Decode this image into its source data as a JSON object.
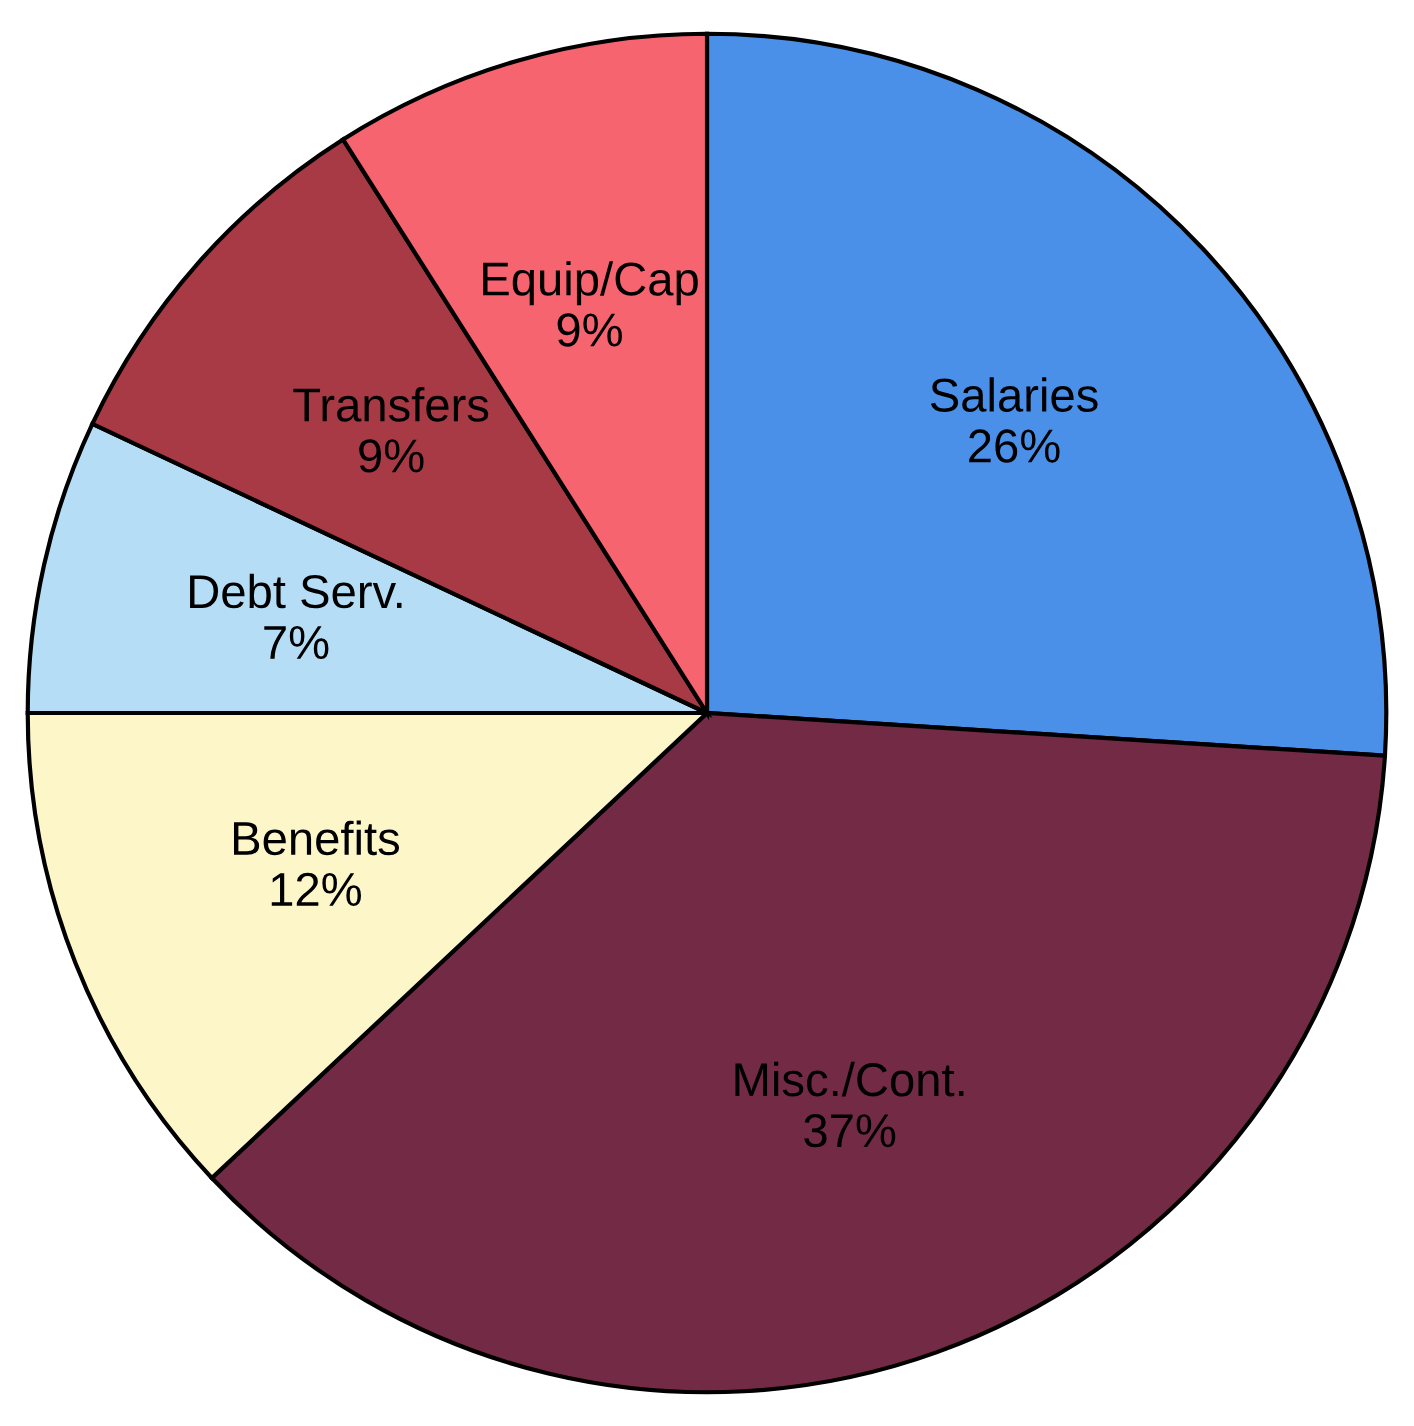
{
  "chart_data": {
    "type": "pie",
    "categories": [
      "Salaries",
      "Misc./Cont.",
      "Benefits",
      "Debt Serv.",
      "Transfers",
      "Equip/Cap"
    ],
    "values": [
      26,
      37,
      12,
      7,
      9,
      9
    ],
    "colors": [
      "#4a8fe8",
      "#722a45",
      "#fdf6c8",
      "#b5def6",
      "#a83a46",
      "#f6646f"
    ],
    "value_labels": [
      "26%",
      "37%",
      "12%",
      "7%",
      "9%",
      "9%"
    ],
    "legend": false
  }
}
